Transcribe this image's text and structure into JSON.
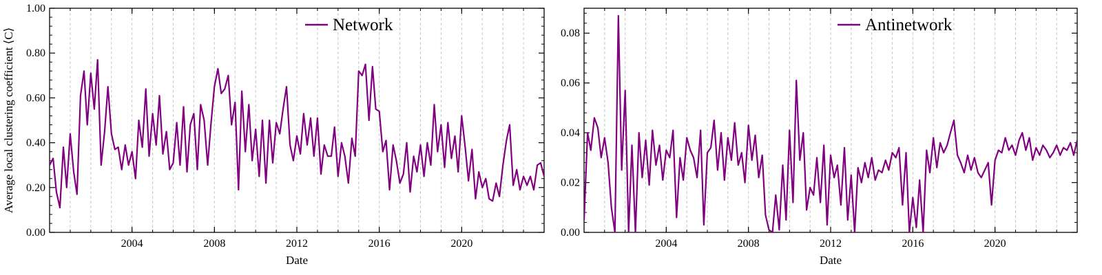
{
  "chart_data": [
    {
      "type": "line",
      "xlabel": "Date",
      "ylabel": "Average local clustering coefficient ⟨C⟩",
      "xlim": [
        2000.0,
        2024.0
      ],
      "ylim": [
        0.0,
        1.0
      ],
      "x_ticks": [
        2004,
        2008,
        2012,
        2016,
        2020
      ],
      "x_tick_labels": [
        "2004",
        "2008",
        "2012",
        "2016",
        "2020"
      ],
      "y_ticks": [
        0.0,
        0.2,
        0.4,
        0.6,
        0.8,
        1.0
      ],
      "y_tick_labels": [
        "0.00",
        "0.20",
        "0.40",
        "0.60",
        "0.80",
        "1.00"
      ],
      "grid": "vertical dashed, yearly",
      "legend_position": "top-center",
      "series": [
        {
          "name": "Network",
          "color": "#800080",
          "x": [
            2000.0,
            2000.17,
            2000.33,
            2000.5,
            2000.67,
            2000.83,
            2001.0,
            2001.17,
            2001.33,
            2001.5,
            2001.67,
            2001.83,
            2002.0,
            2002.17,
            2002.33,
            2002.5,
            2002.67,
            2002.83,
            2003.0,
            2003.17,
            2003.33,
            2003.5,
            2003.67,
            2003.83,
            2004.0,
            2004.17,
            2004.33,
            2004.5,
            2004.67,
            2004.83,
            2005.0,
            2005.17,
            2005.33,
            2005.5,
            2005.67,
            2005.83,
            2006.0,
            2006.17,
            2006.33,
            2006.5,
            2006.67,
            2006.83,
            2007.0,
            2007.17,
            2007.33,
            2007.5,
            2007.67,
            2007.83,
            2008.0,
            2008.17,
            2008.33,
            2008.5,
            2008.67,
            2008.83,
            2009.0,
            2009.17,
            2009.33,
            2009.5,
            2009.67,
            2009.83,
            2010.0,
            2010.17,
            2010.33,
            2010.5,
            2010.67,
            2010.83,
            2011.0,
            2011.17,
            2011.33,
            2011.5,
            2011.67,
            2011.83,
            2012.0,
            2012.17,
            2012.33,
            2012.5,
            2012.67,
            2012.83,
            2013.0,
            2013.17,
            2013.33,
            2013.5,
            2013.67,
            2013.83,
            2014.0,
            2014.17,
            2014.33,
            2014.5,
            2014.67,
            2014.83,
            2015.0,
            2015.17,
            2015.33,
            2015.5,
            2015.67,
            2015.83,
            2016.0,
            2016.17,
            2016.33,
            2016.5,
            2016.67,
            2016.83,
            2017.0,
            2017.17,
            2017.33,
            2017.5,
            2017.67,
            2017.83,
            2018.0,
            2018.17,
            2018.33,
            2018.5,
            2018.67,
            2018.83,
            2019.0,
            2019.17,
            2019.33,
            2019.5,
            2019.67,
            2019.83,
            2020.0,
            2020.17,
            2020.33,
            2020.5,
            2020.67,
            2020.83,
            2021.0,
            2021.17,
            2021.33,
            2021.5,
            2021.67,
            2021.83,
            2022.0,
            2022.17,
            2022.33,
            2022.5,
            2022.67,
            2022.83,
            2023.0,
            2023.17,
            2023.33,
            2023.5,
            2023.67,
            2023.83,
            2024.0
          ],
          "values": [
            0.3,
            0.33,
            0.18,
            0.11,
            0.38,
            0.2,
            0.44,
            0.27,
            0.17,
            0.61,
            0.72,
            0.48,
            0.71,
            0.55,
            0.77,
            0.3,
            0.45,
            0.65,
            0.44,
            0.37,
            0.38,
            0.28,
            0.39,
            0.3,
            0.36,
            0.24,
            0.5,
            0.38,
            0.64,
            0.34,
            0.53,
            0.39,
            0.61,
            0.35,
            0.45,
            0.28,
            0.31,
            0.49,
            0.3,
            0.56,
            0.27,
            0.48,
            0.53,
            0.28,
            0.57,
            0.5,
            0.3,
            0.48,
            0.65,
            0.73,
            0.62,
            0.64,
            0.7,
            0.48,
            0.58,
            0.19,
            0.63,
            0.36,
            0.57,
            0.32,
            0.46,
            0.25,
            0.5,
            0.22,
            0.5,
            0.31,
            0.49,
            0.44,
            0.55,
            0.65,
            0.39,
            0.32,
            0.43,
            0.35,
            0.53,
            0.39,
            0.51,
            0.34,
            0.51,
            0.26,
            0.39,
            0.34,
            0.34,
            0.47,
            0.25,
            0.4,
            0.34,
            0.22,
            0.42,
            0.34,
            0.72,
            0.7,
            0.75,
            0.5,
            0.74,
            0.55,
            0.54,
            0.36,
            0.41,
            0.19,
            0.39,
            0.32,
            0.22,
            0.26,
            0.4,
            0.18,
            0.34,
            0.27,
            0.39,
            0.25,
            0.4,
            0.3,
            0.57,
            0.36,
            0.48,
            0.29,
            0.49,
            0.33,
            0.43,
            0.27,
            0.52,
            0.38,
            0.23,
            0.37,
            0.15,
            0.27,
            0.2,
            0.24,
            0.15,
            0.14,
            0.22,
            0.16,
            0.3,
            0.41,
            0.48,
            0.21,
            0.28,
            0.19,
            0.25,
            0.21,
            0.25,
            0.19,
            0.3,
            0.31,
            0.25
          ]
        }
      ]
    },
    {
      "type": "line",
      "xlabel": "Date",
      "ylabel": "",
      "xlim": [
        2000.0,
        2024.0
      ],
      "ylim": [
        0.0,
        0.09
      ],
      "x_ticks": [
        2004,
        2008,
        2012,
        2016,
        2020
      ],
      "x_tick_labels": [
        "2004",
        "2008",
        "2012",
        "2016",
        "2020"
      ],
      "y_ticks": [
        0.0,
        0.02,
        0.04,
        0.06,
        0.08
      ],
      "y_tick_labels": [
        "0.00",
        "0.02",
        "0.04",
        "0.06",
        "0.08"
      ],
      "grid": "vertical dashed, yearly",
      "legend_position": "top-center",
      "series": [
        {
          "name": "Antinetwork",
          "color": "#800080",
          "x": [
            2000.0,
            2000.17,
            2000.33,
            2000.5,
            2000.67,
            2000.83,
            2001.0,
            2001.17,
            2001.33,
            2001.5,
            2001.67,
            2001.83,
            2002.0,
            2002.17,
            2002.33,
            2002.5,
            2002.67,
            2002.83,
            2003.0,
            2003.17,
            2003.33,
            2003.5,
            2003.67,
            2003.83,
            2004.0,
            2004.17,
            2004.33,
            2004.5,
            2004.67,
            2004.83,
            2005.0,
            2005.17,
            2005.33,
            2005.5,
            2005.67,
            2005.83,
            2006.0,
            2006.17,
            2006.33,
            2006.5,
            2006.67,
            2006.83,
            2007.0,
            2007.17,
            2007.33,
            2007.5,
            2007.67,
            2007.83,
            2008.0,
            2008.17,
            2008.33,
            2008.5,
            2008.67,
            2008.83,
            2009.0,
            2009.17,
            2009.33,
            2009.5,
            2009.67,
            2009.83,
            2010.0,
            2010.17,
            2010.33,
            2010.5,
            2010.67,
            2010.83,
            2011.0,
            2011.17,
            2011.33,
            2011.5,
            2011.67,
            2011.83,
            2012.0,
            2012.17,
            2012.33,
            2012.5,
            2012.67,
            2012.83,
            2013.0,
            2013.17,
            2013.33,
            2013.5,
            2013.67,
            2013.83,
            2014.0,
            2014.17,
            2014.33,
            2014.5,
            2014.67,
            2014.83,
            2015.0,
            2015.17,
            2015.33,
            2015.5,
            2015.67,
            2015.83,
            2016.0,
            2016.17,
            2016.33,
            2016.5,
            2016.67,
            2016.83,
            2017.0,
            2017.17,
            2017.33,
            2017.5,
            2017.67,
            2017.83,
            2018.0,
            2018.17,
            2018.33,
            2018.5,
            2018.67,
            2018.83,
            2019.0,
            2019.17,
            2019.33,
            2019.5,
            2019.67,
            2019.83,
            2020.0,
            2020.17,
            2020.33,
            2020.5,
            2020.67,
            2020.83,
            2021.0,
            2021.17,
            2021.33,
            2021.5,
            2021.67,
            2021.83,
            2022.0,
            2022.17,
            2022.33,
            2022.5,
            2022.67,
            2022.83,
            2023.0,
            2023.17,
            2023.33,
            2023.5,
            2023.67,
            2023.83,
            2024.0
          ],
          "values": [
            0.005,
            0.04,
            0.033,
            0.046,
            0.042,
            0.03,
            0.038,
            0.028,
            0.01,
            0.0,
            0.087,
            0.025,
            0.057,
            0.0,
            0.035,
            0.0,
            0.04,
            0.022,
            0.037,
            0.019,
            0.041,
            0.027,
            0.035,
            0.021,
            0.033,
            0.03,
            0.041,
            0.006,
            0.03,
            0.021,
            0.038,
            0.033,
            0.03,
            0.022,
            0.041,
            0.003,
            0.032,
            0.034,
            0.045,
            0.025,
            0.04,
            0.021,
            0.038,
            0.029,
            0.044,
            0.027,
            0.032,
            0.02,
            0.043,
            0.029,
            0.039,
            0.022,
            0.031,
            0.007,
            0.001,
            0.0,
            0.015,
            0.001,
            0.027,
            0.005,
            0.041,
            0.012,
            0.061,
            0.029,
            0.04,
            0.009,
            0.018,
            0.015,
            0.03,
            0.012,
            0.035,
            0.003,
            0.031,
            0.022,
            0.027,
            0.011,
            0.034,
            0.005,
            0.023,
            0.0,
            0.026,
            0.02,
            0.028,
            0.022,
            0.03,
            0.021,
            0.025,
            0.024,
            0.029,
            0.025,
            0.032,
            0.03,
            0.034,
            0.011,
            0.032,
            0.0,
            0.014,
            0.002,
            0.021,
            0.0,
            0.033,
            0.024,
            0.038,
            0.026,
            0.036,
            0.032,
            0.035,
            0.04,
            0.045,
            0.031,
            0.028,
            0.024,
            0.031,
            0.025,
            0.03,
            0.024,
            0.022,
            0.025,
            0.028,
            0.011,
            0.029,
            0.033,
            0.032,
            0.038,
            0.033,
            0.035,
            0.031,
            0.037,
            0.04,
            0.033,
            0.038,
            0.029,
            0.034,
            0.031,
            0.035,
            0.033,
            0.03,
            0.032,
            0.035,
            0.031,
            0.034,
            0.033,
            0.036,
            0.031,
            0.037
          ]
        }
      ]
    }
  ]
}
